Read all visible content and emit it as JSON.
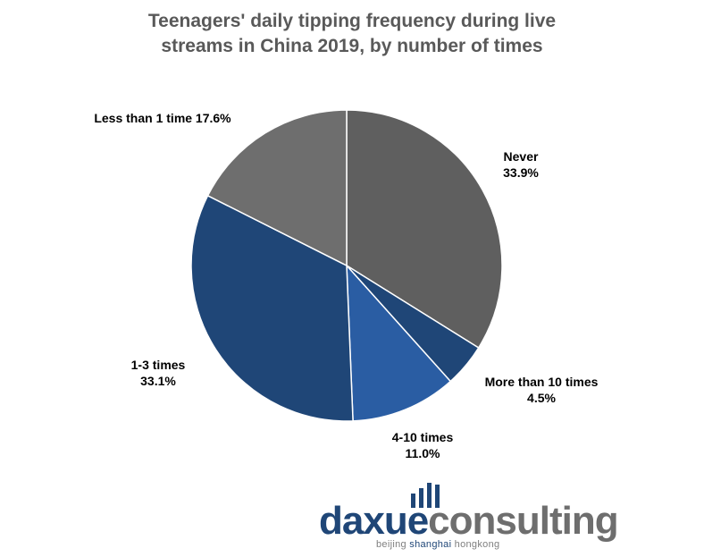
{
  "chart_data": {
    "type": "pie",
    "title_line1": "Teenagers' daily tipping frequency during live",
    "title_line2": "streams in China 2019, by number of times",
    "slices": [
      {
        "name": "Never",
        "value": 33.9,
        "value_label": "33.9%",
        "color": "#5f5f5f"
      },
      {
        "name": "More than 10 times",
        "value": 4.5,
        "value_label": "4.5%",
        "color": "#1f4677"
      },
      {
        "name": "4-10 times",
        "value": 11.0,
        "value_label": "11.0%",
        "color": "#2a5da3"
      },
      {
        "name": "1-3 times",
        "value": 33.1,
        "value_label": "33.1%",
        "color": "#1f4677"
      },
      {
        "name": "Less than 1 time",
        "value": 17.6,
        "value_label": "17.6%",
        "color": "#6e6e6e"
      }
    ]
  },
  "logo": {
    "word_part1": "daxue",
    "word_part2": "consulting",
    "tag_part1": "beijing ",
    "tag_part2": "shanghai",
    "tag_part3": " hongkong"
  }
}
